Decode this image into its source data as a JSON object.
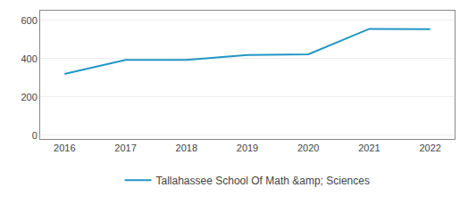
{
  "chart_data": {
    "type": "line",
    "x": [
      2016,
      2017,
      2018,
      2019,
      2020,
      2021,
      2022
    ],
    "series": [
      {
        "name": "Tallahassee School Of Math &amp; Sciences",
        "color": "#2196c4",
        "values": [
          320,
          393,
          393,
          418,
          422,
          555,
          553
        ]
      }
    ],
    "xlim": [
      2015.6,
      2022.4
    ],
    "xticks": [
      2016,
      2017,
      2018,
      2019,
      2020,
      2021,
      2022
    ],
    "ylim": [
      -20,
      650
    ],
    "yticks": [
      0,
      200,
      400,
      600
    ],
    "grid": "y",
    "legend": "bottom"
  }
}
